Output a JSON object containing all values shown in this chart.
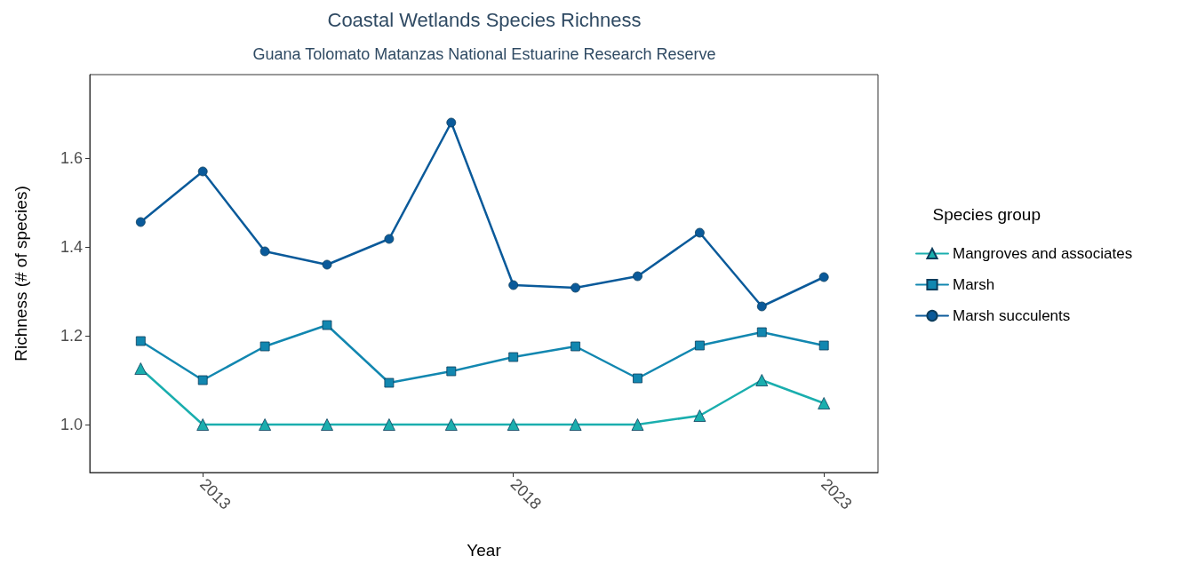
{
  "chart_data": {
    "type": "line",
    "title": "Coastal Wetlands Species Richness",
    "subtitle": "Guana Tolomato Matanzas National Estuarine Research Reserve",
    "xlabel": "Year",
    "ylabel": "Richness (# of species)",
    "legend_title": "Species group",
    "x": [
      2012,
      2013,
      2014,
      2015,
      2016,
      2017,
      2018,
      2019,
      2020,
      2021,
      2022,
      2023
    ],
    "series": [
      {
        "name": "Mangroves and associates",
        "color": "#1aaeae",
        "marker": "triangle",
        "values": [
          1.126,
          1.0,
          1.0,
          1.0,
          1.0,
          1.0,
          1.0,
          1.0,
          1.0,
          1.02,
          1.1,
          1.048
        ]
      },
      {
        "name": "Marsh",
        "color": "#1287b0",
        "marker": "square",
        "values": [
          1.188,
          1.1,
          1.176,
          1.224,
          1.094,
          1.12,
          1.152,
          1.176,
          1.104,
          1.178,
          1.208,
          1.178
        ]
      },
      {
        "name": "Marsh succulents",
        "color": "#0a5a9a",
        "marker": "circle",
        "values": [
          1.456,
          1.57,
          1.39,
          1.36,
          1.418,
          1.68,
          1.314,
          1.308,
          1.334,
          1.432,
          1.266,
          1.332
        ]
      }
    ],
    "xlim": [
      2011.18,
      2023.87
    ],
    "xticks": [
      2013,
      2018,
      2023
    ],
    "ylim": [
      0.892,
      1.788
    ],
    "yticks": [
      {
        "value": 1.0,
        "label": "1.0"
      },
      1.2,
      1.4,
      1.6
    ],
    "grid": false,
    "legend": "right",
    "line_style": "solid"
  }
}
